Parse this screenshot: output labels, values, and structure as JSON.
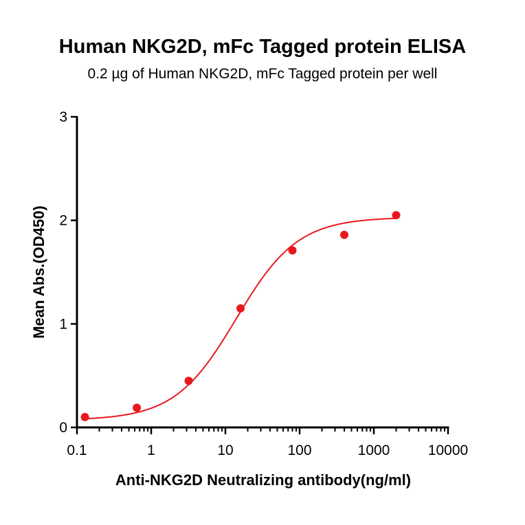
{
  "chart_data": {
    "type": "scatter",
    "title": "Human NKG2D,  mFc Tagged protein ELISA",
    "subtitle": "0.2 µg of Human NKG2D, mFc Tagged protein per well",
    "xlabel": "Anti-NKG2D Neutralizing antibody(ng/ml)",
    "ylabel": "Mean Abs.(OD450)",
    "xscale": "log",
    "xlim": [
      0.1,
      10000
    ],
    "ylim": [
      0,
      3
    ],
    "xticks": [
      "0.1",
      "1",
      "10",
      "100",
      "1000",
      "10000"
    ],
    "yticks": [
      "0",
      "1",
      "2",
      "3"
    ],
    "grid": false,
    "series": [
      {
        "color": "#e8191e",
        "x": [
          0.128,
          0.64,
          3.2,
          16,
          80,
          400,
          2000
        ],
        "y": [
          0.1,
          0.19,
          0.45,
          1.15,
          1.71,
          1.86,
          2.05
        ]
      }
    ],
    "fit_curve": {
      "model": "4PL",
      "color": "#e8191e",
      "bottom": 0.07,
      "top": 2.03,
      "ec50": 14,
      "hill": 1.05,
      "x_range": [
        0.128,
        2000
      ]
    }
  }
}
